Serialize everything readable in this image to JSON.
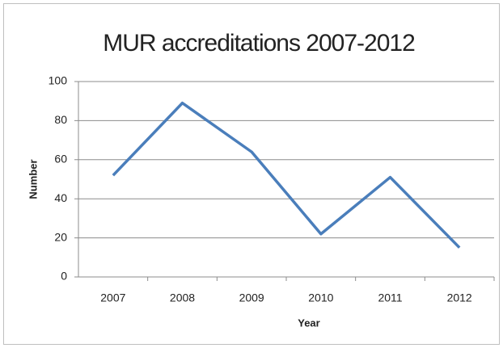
{
  "chart_data": {
    "type": "line",
    "title": "MUR accreditations 2007-2012",
    "x_label": "Year",
    "y_label": "Number",
    "categories": [
      "2007",
      "2008",
      "2009",
      "2010",
      "2011",
      "2012"
    ],
    "series": [
      {
        "name": "Number",
        "color": "#4a7ebb",
        "values": [
          52,
          89,
          64,
          22,
          51,
          15
        ]
      }
    ],
    "ylim": [
      0,
      100
    ],
    "yticks": [
      0,
      20,
      40,
      60,
      80,
      100
    ],
    "grid": true
  }
}
